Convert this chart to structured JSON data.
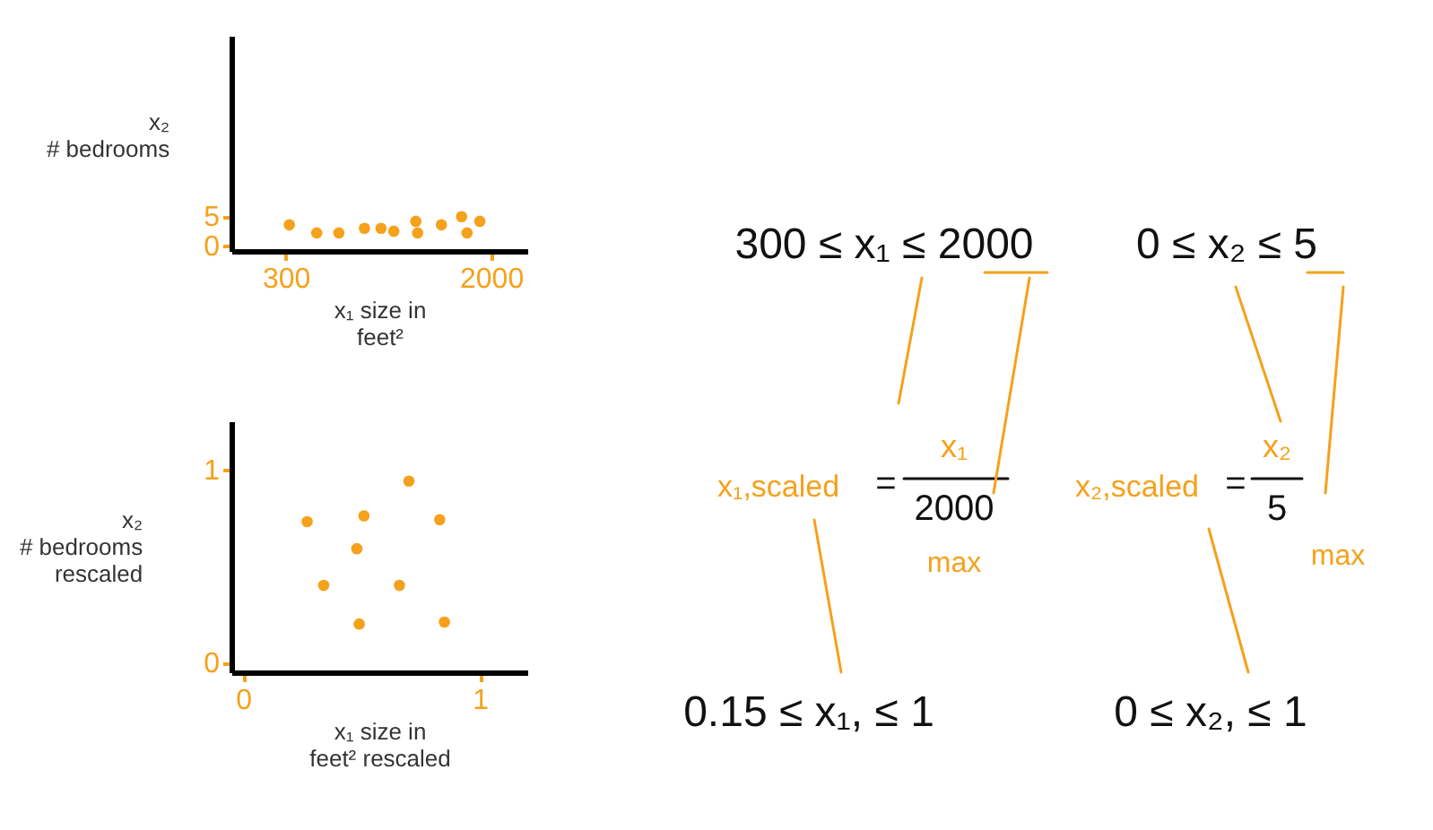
{
  "chart_data": [
    {
      "type": "scatter",
      "xlabel": "x₁ size in\nfeet²",
      "ylabel": "x₂\n# bedrooms",
      "xlim": [
        -150,
        2300
      ],
      "ylim": [
        -1,
        36
      ],
      "xticks": [
        300,
        2000
      ],
      "yticks": [
        0,
        5
      ],
      "grid": false,
      "marker": "circle",
      "series": [
        {
          "color": "#f5a11c",
          "x": [
            330,
            557,
            740,
            952,
            1089,
            1195,
            1377,
            1392,
            1589,
            1756,
            1801,
            1907
          ],
          "values": [
            3.5,
            2.1,
            2.1,
            2.9,
            2.9,
            2.4,
            4.1,
            2.1,
            3.5,
            4.9,
            2.1,
            4.1
          ]
        }
      ]
    },
    {
      "type": "scatter",
      "xlabel": "x₁ size in\nfeet² rescaled",
      "ylabel": "x₂\n# bedrooms\nrescaled",
      "xlim": [
        -0.05,
        1.2
      ],
      "ylim": [
        -0.05,
        1.25
      ],
      "xticks": [
        0,
        1
      ],
      "yticks": [
        0,
        1
      ],
      "grid": false,
      "marker": "circle",
      "series": [
        {
          "color": "#f5a11c",
          "x": [
            0.27,
            0.51,
            0.7,
            0.83,
            0.48,
            0.34,
            0.66,
            0.49,
            0.85
          ],
          "values": [
            0.73,
            0.76,
            0.94,
            0.74,
            0.59,
            0.4,
            0.4,
            0.2,
            0.21
          ]
        }
      ]
    },
    {
      "type": "other",
      "annotations": [
        "300 ≤ x₁ ≤ 2000",
        "0 ≤ x₂ ≤ 5",
        "x₁,scaled",
        "=",
        "x₁",
        "2000",
        "max",
        "x₂,scaled",
        "=",
        "x₂",
        "5",
        "max",
        "0.15 ≤ x₁, ≤ 1",
        "0 ≤ x₂, ≤ 1"
      ]
    }
  ]
}
